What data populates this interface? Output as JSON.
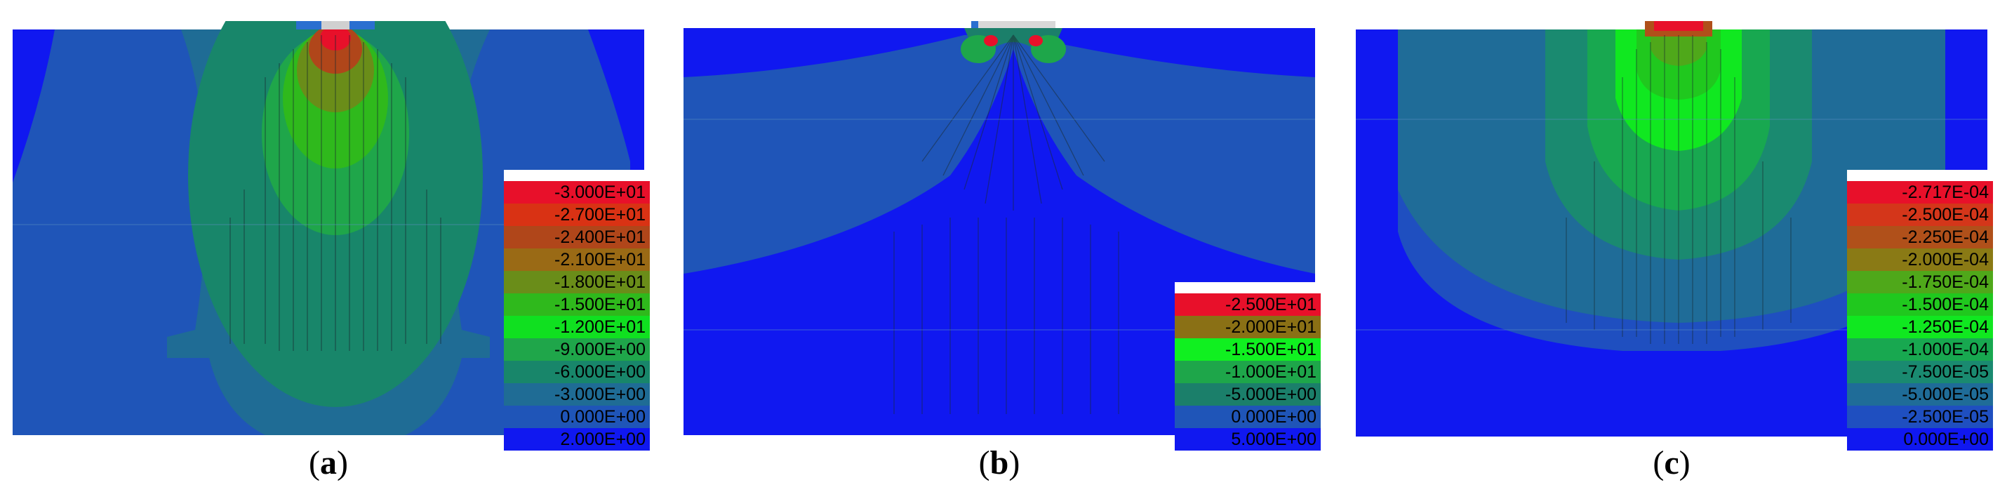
{
  "panels": [
    {
      "id": "a",
      "caption_letter": "a",
      "legend": [
        "-3.000E+01",
        "-2.700E+01",
        "-2.400E+01",
        "-2.100E+01",
        "-1.800E+01",
        "-1.500E+01",
        "-1.200E+01",
        "-9.000E+00",
        "-6.000E+00",
        "-3.000E+00",
        "0.000E+00",
        "2.000E+00"
      ],
      "colors": [
        "#e8102a",
        "#d93214",
        "#b0461a",
        "#9a6a15",
        "#6a8d19",
        "#2fb91c",
        "#10e020",
        "#1fa64a",
        "#18866a",
        "#1f6c95",
        "#1f55b8",
        "#1018f0"
      ]
    },
    {
      "id": "b",
      "caption_letter": "b",
      "legend": [
        "-2.500E+01",
        "-2.000E+01",
        "-1.500E+01",
        "-1.000E+01",
        "-5.000E+00",
        "0.000E+00",
        "5.000E+00"
      ],
      "colors": [
        "#e8102a",
        "#8a7015",
        "#10f020",
        "#1ea64a",
        "#1b7f6a",
        "#1f55b8",
        "#1018f0"
      ]
    },
    {
      "id": "c",
      "caption_letter": "c",
      "legend": [
        "-2.717E-04",
        "-2.500E-04",
        "-2.250E-04",
        "-2.000E-04",
        "-1.750E-04",
        "-1.500E-04",
        "-1.250E-04",
        "-1.000E-04",
        "-7.500E-05",
        "-5.000E-05",
        "-2.500E-05",
        "0.000E+00"
      ],
      "colors": [
        "#e8102a",
        "#d4361a",
        "#b0501a",
        "#8a7a15",
        "#4fa81a",
        "#20c81e",
        "#10e820",
        "#18a850",
        "#1a8a70",
        "#1f6c98",
        "#1f4fc0",
        "#1018f0"
      ]
    }
  ]
}
